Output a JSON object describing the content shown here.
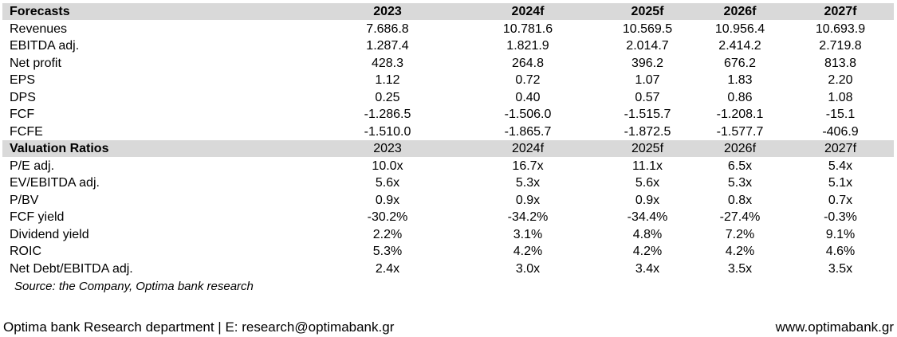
{
  "forecasts": {
    "title": "Forecasts",
    "columns": [
      "2023",
      "2024f",
      "2025f",
      "2026f",
      "2027f"
    ],
    "rows": [
      {
        "label": "Revenues",
        "values": [
          "7.686.8",
          "10.781.6",
          "10.569.5",
          "10.956.4",
          "10.693.9"
        ]
      },
      {
        "label": "EBITDA adj.",
        "values": [
          "1.287.4",
          "1.821.9",
          "2.014.7",
          "2.414.2",
          "2.719.8"
        ]
      },
      {
        "label": "Net profit",
        "values": [
          "428.3",
          "264.8",
          "396.2",
          "676.2",
          "813.8"
        ]
      },
      {
        "label": "EPS",
        "values": [
          "1.12",
          "0.72",
          "1.07",
          "1.83",
          "2.20"
        ]
      },
      {
        "label": "DPS",
        "values": [
          "0.25",
          "0.40",
          "0.57",
          "0.86",
          "1.08"
        ]
      },
      {
        "label": "FCF",
        "values": [
          "-1.286.5",
          "-1.506.0",
          "-1.515.7",
          "-1.208.1",
          "-15.1"
        ]
      },
      {
        "label": "FCFE",
        "values": [
          "-1.510.0",
          "-1.865.7",
          "-1.872.5",
          "-1.577.7",
          "-406.9"
        ]
      }
    ]
  },
  "valuation": {
    "title": "Valuation Ratios",
    "columns": [
      "2023",
      "2024f",
      "2025f",
      "2026f",
      "2027f"
    ],
    "rows": [
      {
        "label": "P/E adj.",
        "values": [
          "10.0x",
          "16.7x",
          "11.1x",
          "6.5x",
          "5.4x"
        ]
      },
      {
        "label": "EV/EBITDA adj.",
        "values": [
          "5.6x",
          "5.3x",
          "5.6x",
          "5.3x",
          "5.1x"
        ]
      },
      {
        "label": "P/BV",
        "values": [
          "0.9x",
          "0.9x",
          "0.9x",
          "0.8x",
          "0.7x"
        ]
      },
      {
        "label": "FCF yield",
        "values": [
          "-30.2%",
          "-34.2%",
          "-34.4%",
          "-27.4%",
          "-0.3%"
        ]
      },
      {
        "label": "Dividend yield",
        "values": [
          "2.2%",
          "3.1%",
          "4.8%",
          "7.2%",
          "9.1%"
        ]
      },
      {
        "label": "ROIC",
        "values": [
          "5.3%",
          "4.2%",
          "4.2%",
          "4.2%",
          "4.6%"
        ]
      },
      {
        "label": "Net Debt/EBITDA adj.",
        "values": [
          "2.4x",
          "3.0x",
          "3.4x",
          "3.5x",
          "3.5x"
        ]
      }
    ]
  },
  "source": "Source: the Company, Optima bank research",
  "footer": {
    "left": "Optima bank Research department | E: research@optimabank.gr",
    "right": "www.optimabank.gr"
  }
}
